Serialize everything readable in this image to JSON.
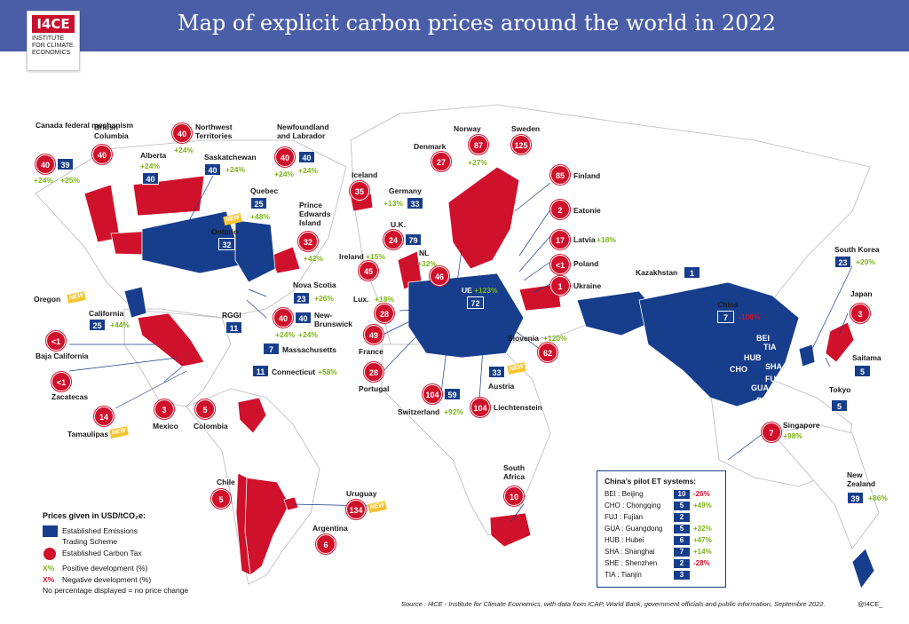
{
  "title": "Map of explicit carbon prices around the world in 2022",
  "logo": {
    "mark": "I4CE",
    "text": "INSTITUTE FOR CLIMATE ECONOMICS"
  },
  "colors": {
    "ets": "#173e8c",
    "tax": "#d0112b",
    "positive": "#7cb518",
    "negative": "#d0112b",
    "new": "#f4c430",
    "header": "#4a5ea8"
  },
  "jurisdictions": [
    {
      "id": "canada-federal",
      "name": "Canada federal mechanism",
      "tax": "40",
      "tax_change": "+24%",
      "ets": "39",
      "ets_change": "+25%"
    },
    {
      "id": "british-columbia",
      "name": "British Columbia",
      "tax": "40"
    },
    {
      "id": "alberta",
      "name": "Alberta",
      "ets": "40",
      "ets_change": "+24%"
    },
    {
      "id": "northwest-territories",
      "name": "Northwest Territories",
      "tax": "40",
      "tax_change": "+24%"
    },
    {
      "id": "saskatchewan",
      "name": "Saskatchewan",
      "ets": "40",
      "ets_change": "+24%"
    },
    {
      "id": "newfoundland",
      "name": "Newfoundland and Labrador",
      "tax": "40",
      "tax_change": "+24%",
      "ets": "40",
      "ets_change": "+24%"
    },
    {
      "id": "quebec",
      "name": "Quebec",
      "ets": "25",
      "ets_change": "+48%"
    },
    {
      "id": "ontario",
      "name": "Ontario",
      "ets": "32",
      "new": "NEW"
    },
    {
      "id": "prince-edward",
      "name": "Prince Edwards Island",
      "tax": "32",
      "tax_change": "+42%"
    },
    {
      "id": "nova-scotia",
      "name": "Nova Scotia",
      "ets": "23",
      "ets_change": "+26%"
    },
    {
      "id": "new-brunswick",
      "name": "New-Brunswick",
      "tax": "40",
      "tax_change": "+24%",
      "ets": "40",
      "ets_change": "+24%"
    },
    {
      "id": "oregon",
      "name": "Oregon",
      "new": "NEW"
    },
    {
      "id": "california",
      "name": "California",
      "ets": "25",
      "ets_change": "+44%"
    },
    {
      "id": "rggi",
      "name": "RGGI",
      "ets": "11"
    },
    {
      "id": "massachusetts",
      "name": "Massachusetts",
      "ets": "7"
    },
    {
      "id": "connecticut",
      "name": "Connecticut",
      "ets": "11",
      "ets_change": "+58%"
    },
    {
      "id": "baja-california",
      "name": "Baja California",
      "tax": "<1"
    },
    {
      "id": "zacatecas",
      "name": "Zacatecas",
      "tax": "<1"
    },
    {
      "id": "tamaulipas",
      "name": "Tamaulipas",
      "tax": "14",
      "new": "NEW"
    },
    {
      "id": "mexico",
      "name": "Mexico",
      "tax": "3"
    },
    {
      "id": "colombia",
      "name": "Colombia",
      "tax": "5"
    },
    {
      "id": "chile",
      "name": "Chile",
      "tax": "5"
    },
    {
      "id": "uruguay",
      "name": "Uruguay",
      "tax": "134",
      "new": "NEW"
    },
    {
      "id": "argentina",
      "name": "Argentina",
      "tax": "6"
    },
    {
      "id": "iceland",
      "name": "Iceland",
      "tax": "35"
    },
    {
      "id": "germany",
      "name": "Germany",
      "ets": "33",
      "ets_change": "+13%"
    },
    {
      "id": "denmark",
      "name": "Denmark",
      "tax": "27"
    },
    {
      "id": "norway",
      "name": "Norway",
      "tax": "87",
      "tax_change": "+27%"
    },
    {
      "id": "sweden",
      "name": "Sweden",
      "tax": "125"
    },
    {
      "id": "finland",
      "name": "Finland",
      "tax": "85"
    },
    {
      "id": "estonia",
      "name": "Eatonie",
      "tax": "2"
    },
    {
      "id": "latvia",
      "name": "Latvia",
      "tax": "17",
      "tax_change": "+18%"
    },
    {
      "id": "poland",
      "name": "Poland",
      "tax": "<1"
    },
    {
      "id": "ukraine",
      "name": "Ukraine",
      "tax": "1"
    },
    {
      "id": "uk",
      "name": "U.K.",
      "tax": "24",
      "ets": "79"
    },
    {
      "id": "ireland",
      "name": "Ireland",
      "tax": "45",
      "tax_change": "+15%"
    },
    {
      "id": "nl",
      "name": "NL",
      "tax": "46",
      "tax_change": "+32%"
    },
    {
      "id": "eu",
      "name": "UE",
      "ets": "72",
      "ets_change": "+123%"
    },
    {
      "id": "luxembourg",
      "name": "Lux.",
      "tax": "28",
      "tax_change": "+18%"
    },
    {
      "id": "france",
      "name": "France",
      "tax": "49"
    },
    {
      "id": "portugal",
      "name": "Portugal",
      "tax": "28"
    },
    {
      "id": "switzerland",
      "name": "Switzerland",
      "tax": "104",
      "ets": "59",
      "ets_change": "+92%"
    },
    {
      "id": "liechtenstein",
      "name": "Liechtenstein",
      "tax": "104"
    },
    {
      "id": "austria",
      "name": "Austria",
      "ets": "33",
      "new": "NEW"
    },
    {
      "id": "slovenia",
      "name": "Slovenia",
      "tax": "62",
      "tax_change": "+120%"
    },
    {
      "id": "south-africa",
      "name": "South Africa",
      "tax": "10"
    },
    {
      "id": "kazakhstan",
      "name": "Kazakhstan",
      "ets": "1"
    },
    {
      "id": "china",
      "name": "China",
      "ets": "7",
      "ets_change": "-100%"
    },
    {
      "id": "south-korea",
      "name": "South Korea",
      "ets": "23",
      "ets_change": "+20%"
    },
    {
      "id": "japan",
      "name": "Japan",
      "tax": "3"
    },
    {
      "id": "saitama",
      "name": "Saitama",
      "ets": "5"
    },
    {
      "id": "tokyo",
      "name": "Tokyo",
      "ets": "5"
    },
    {
      "id": "singapore",
      "name": "Singapore",
      "tax": "7",
      "tax_change": "+98%"
    },
    {
      "id": "new-zealand",
      "name": "New Zealand",
      "ets": "39",
      "ets_change": "+86%"
    }
  ],
  "china_map_codes": [
    "BEI",
    "TIA",
    "HUB",
    "SHA",
    "CHO",
    "FUJ",
    "GUA",
    "SHE"
  ],
  "china_pilots": {
    "title": "China’s pilot ET systems:",
    "rows": [
      {
        "label": "BEI : Beijing",
        "value": "10",
        "change": "-26%",
        "sign": "neg"
      },
      {
        "label": "CHO : Chongqing",
        "value": "5",
        "change": "+49%",
        "sign": "pos"
      },
      {
        "label": "FUJ : Fujian",
        "value": "2",
        "change": "",
        "sign": ""
      },
      {
        "label": "GUA : Guangdong",
        "value": "5",
        "change": "+32%",
        "sign": "pos"
      },
      {
        "label": "HUB : Hubei",
        "value": "6",
        "change": "+47%",
        "sign": "pos"
      },
      {
        "label": "SHA : Shanghai",
        "value": "7",
        "change": "+14%",
        "sign": "pos"
      },
      {
        "label": "SHE : Shenzhen",
        "value": "2",
        "change": "-28%",
        "sign": "neg"
      },
      {
        "label": "TIA : Tianjin",
        "value": "3",
        "change": "",
        "sign": ""
      }
    ]
  },
  "legend": {
    "title": "Prices given in USD/tCO₂e:",
    "ets": "Established Emissions Trading Scheme",
    "tax": "Established Carbon Tax",
    "pos_symbol": "X%",
    "pos": "Positive development (%)",
    "neg_symbol": "X%",
    "neg": "Negative development (%)",
    "note": "No percentage displayed = no price change"
  },
  "source": "Source : I4CE - Institute for Climate Economics, with data from ICAP, World Bank, government officials and public information, Septembre 2022.",
  "handle": "@I4CE_"
}
